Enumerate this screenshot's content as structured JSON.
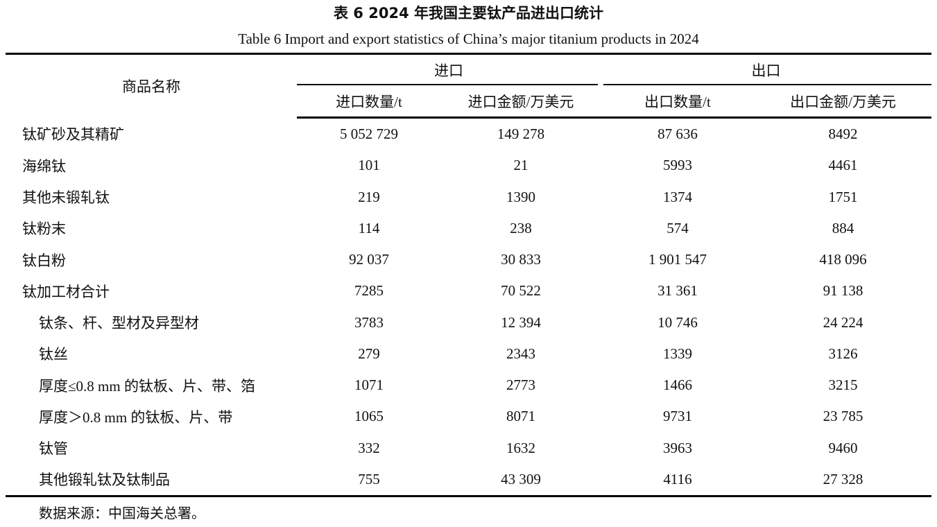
{
  "caption": {
    "title_cn": "表 6   2024 年我国主要钛产品进出口统计",
    "title_en": "Table 6   Import and export statistics of China’s major titanium products in 2024"
  },
  "table": {
    "name_header": "商品名称",
    "group_headers": [
      "进口",
      "出口"
    ],
    "column_headers": [
      "进口数量/t",
      "进口金额/万美元",
      "出口数量/t",
      "出口金额/万美元"
    ],
    "rows": [
      {
        "name": "钛矿砂及其精矿",
        "sub": false,
        "values": [
          "5 052 729",
          "149 278",
          "87 636",
          "8492"
        ]
      },
      {
        "name": "海绵钛",
        "sub": false,
        "values": [
          "101",
          "21",
          "5993",
          "4461"
        ]
      },
      {
        "name": "其他未锻轧钛",
        "sub": false,
        "values": [
          "219",
          "1390",
          "1374",
          "1751"
        ]
      },
      {
        "name": "钛粉末",
        "sub": false,
        "values": [
          "114",
          "238",
          "574",
          "884"
        ]
      },
      {
        "name": "钛白粉",
        "sub": false,
        "values": [
          "92 037",
          "30 833",
          "1 901 547",
          "418 096"
        ]
      },
      {
        "name": "钛加工材合计",
        "sub": false,
        "values": [
          "7285",
          "70 522",
          "31 361",
          "91 138"
        ]
      },
      {
        "name": "钛条、杆、型材及异型材",
        "sub": true,
        "values": [
          "3783",
          "12 394",
          "10 746",
          "24 224"
        ]
      },
      {
        "name": "钛丝",
        "sub": true,
        "values": [
          "279",
          "2343",
          "1339",
          "3126"
        ]
      },
      {
        "name": "厚度≤0.8 mm 的钛板、片、带、箔",
        "sub": true,
        "values": [
          "1071",
          "2773",
          "1466",
          "3215"
        ]
      },
      {
        "name": "厚度＞0.8 mm 的钛板、片、带",
        "sub": true,
        "values": [
          "1065",
          "8071",
          "9731",
          "23 785"
        ]
      },
      {
        "name": "钛管",
        "sub": true,
        "values": [
          "332",
          "1632",
          "3963",
          "9460"
        ]
      },
      {
        "name": "其他锻轧钛及钛制品",
        "sub": true,
        "values": [
          "755",
          "43 309",
          "4116",
          "27 328"
        ]
      }
    ]
  },
  "source_note": "数据来源：中国海关总署。"
}
